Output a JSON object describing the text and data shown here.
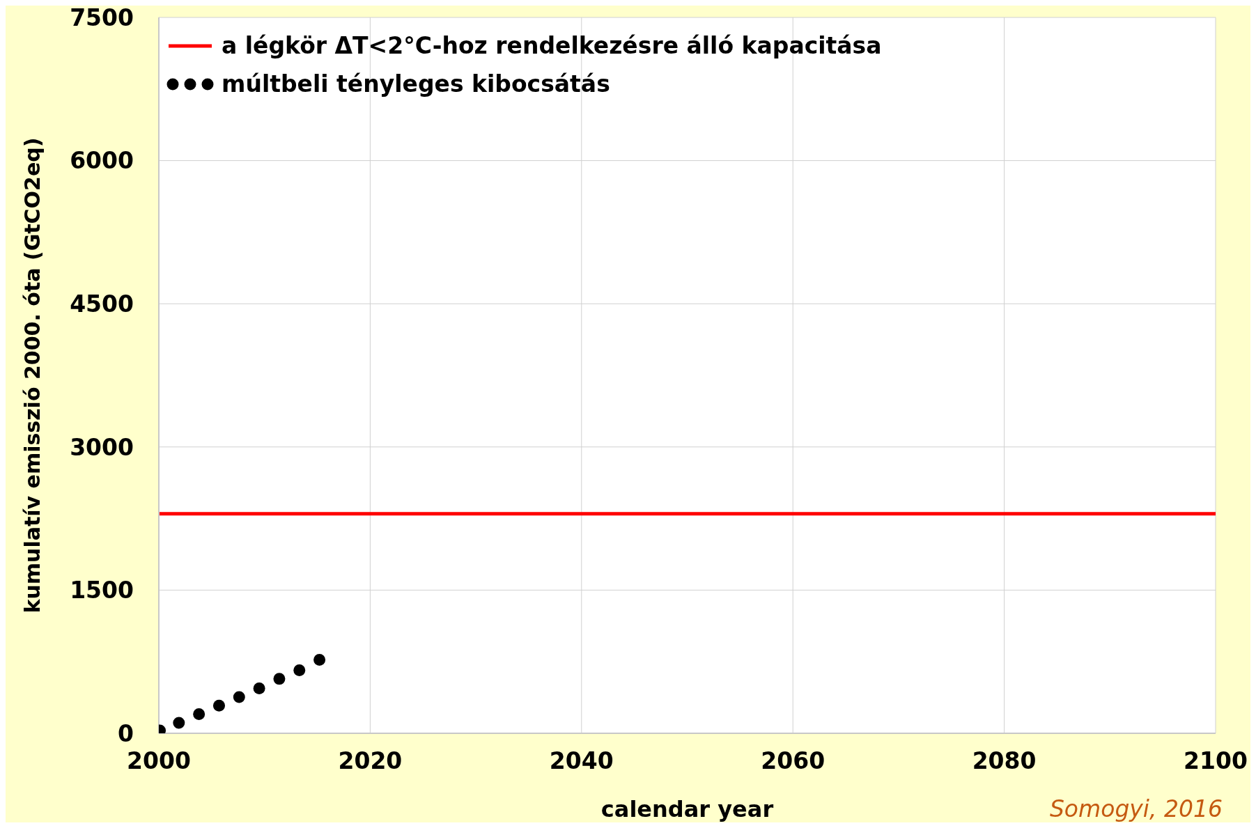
{
  "chart_data": {
    "type": "line",
    "xlabel": "calendar year",
    "ylabel": "kumulatív emisszió 2000. óta (GtCO2eq)",
    "xlim": [
      2000,
      2100
    ],
    "xticks": [
      2000,
      2020,
      2040,
      2060,
      2080,
      2100
    ],
    "ylim": [
      0,
      7500
    ],
    "yticks": [
      0,
      1500,
      3000,
      4500,
      6000,
      7500
    ],
    "grid": true,
    "legend": "top left",
    "annotations": [
      "Somogyi, 2016"
    ],
    "series": [
      {
        "name": "a légkör ΔT<2°C-hoz rendelkezésre álló kapacitása",
        "color": "#ff0000",
        "marker": "none",
        "line_style": "solid",
        "x": [
          2000,
          2100
        ],
        "values": [
          2300,
          2300
        ]
      },
      {
        "name": "múltbeli tényleges kibocsátás",
        "type": "scatter",
        "color": "#000000",
        "marker": "circle",
        "x": [
          2000.1,
          2001.9,
          2003.8,
          2005.7,
          2007.6,
          2009.5,
          2011.4,
          2013.3,
          2015.2
        ],
        "values": [
          30,
          110,
          200,
          290,
          380,
          470,
          570,
          660,
          770
        ]
      }
    ]
  }
}
